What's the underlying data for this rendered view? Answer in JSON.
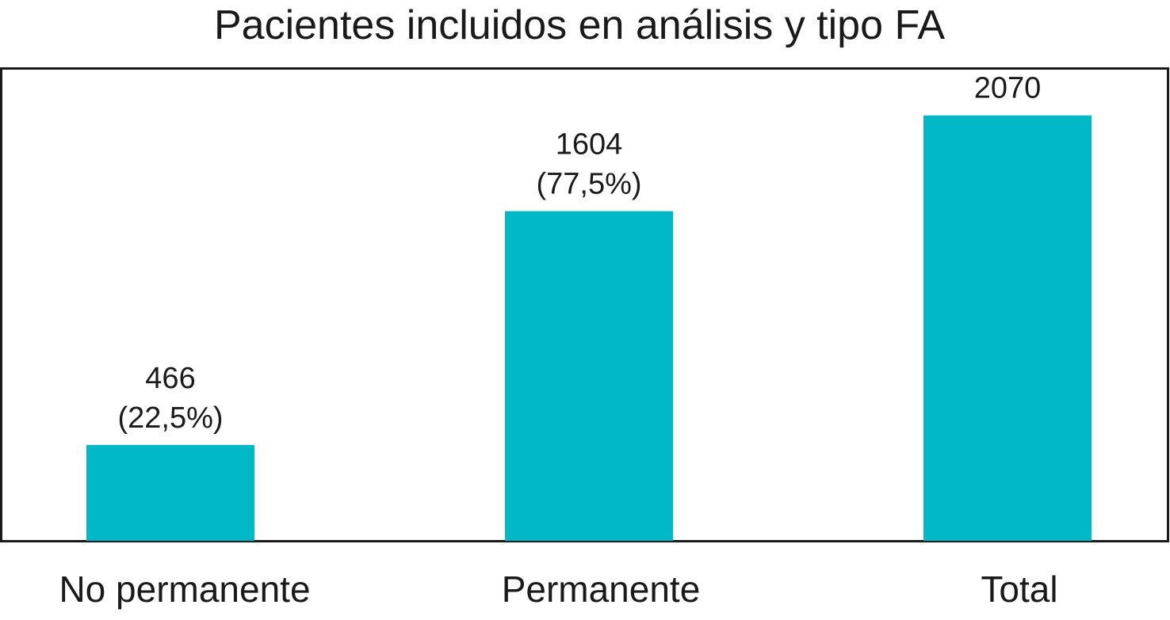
{
  "chart_data": {
    "type": "bar",
    "title": "Pacientes incluidos en análisis y tipo FA",
    "xlabel": "",
    "ylabel": "",
    "categories": [
      "No permanente",
      "Permanente",
      "Total"
    ],
    "values": [
      466,
      1604,
      2070
    ],
    "data_labels": [
      [
        "466",
        "(22,5%)"
      ],
      [
        "1604",
        "(77,5%)"
      ],
      [
        "2070"
      ]
    ],
    "ylim": [
      0,
      2300
    ],
    "grid": false,
    "legend": "none",
    "bar_color": "#00b8c6"
  }
}
